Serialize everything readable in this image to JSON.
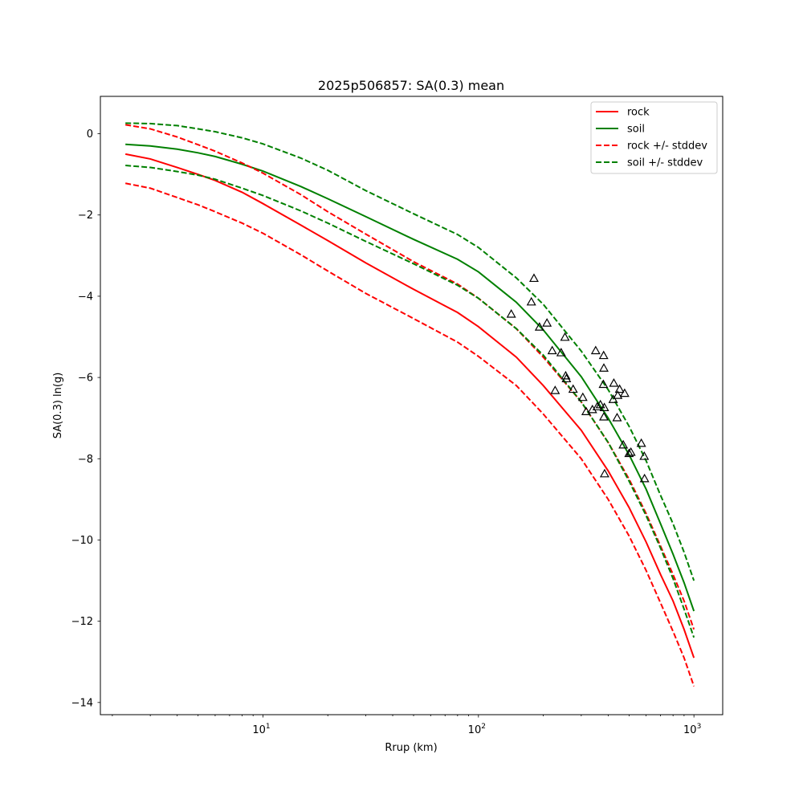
{
  "chart_data": {
    "type": "line",
    "title": "2025p506857: SA(0.3) mean",
    "xlabel": "Rrup (km)",
    "ylabel": "SA(0.3) ln(g)",
    "x_scale": "log",
    "xlim": [
      1.76,
      1360
    ],
    "ylim": [
      -14.3,
      0.92
    ],
    "grid": false,
    "legend_position": "top-right",
    "x_ticks": [
      {
        "value": 10,
        "base": "10",
        "exp": "1"
      },
      {
        "value": 100,
        "base": "10",
        "exp": "2"
      },
      {
        "value": 1000,
        "base": "10",
        "exp": "3"
      }
    ],
    "y_ticks": [
      {
        "value": 0,
        "label": "0"
      },
      {
        "value": -2,
        "label": "−2"
      },
      {
        "value": -4,
        "label": "−4"
      },
      {
        "value": -6,
        "label": "−6"
      },
      {
        "value": -8,
        "label": "−8"
      },
      {
        "value": -10,
        "label": "−10"
      },
      {
        "value": -12,
        "label": "−12"
      },
      {
        "value": -14,
        "label": "−14"
      }
    ],
    "x": [
      2.3,
      3,
      4,
      5,
      6,
      8,
      10,
      15,
      20,
      30,
      50,
      80,
      100,
      150,
      200,
      300,
      400,
      500,
      600,
      700,
      800,
      900,
      1000
    ],
    "series": [
      {
        "name": "rock",
        "color": "#ff0000",
        "dash": "solid",
        "values": [
          -0.5,
          -0.62,
          -0.83,
          -1.0,
          -1.15,
          -1.44,
          -1.72,
          -2.25,
          -2.63,
          -3.18,
          -3.83,
          -4.4,
          -4.75,
          -5.5,
          -6.2,
          -7.3,
          -8.3,
          -9.2,
          -10.05,
          -10.85,
          -11.5,
          -12.2,
          -12.9
        ]
      },
      {
        "name": "soil",
        "color": "#008000",
        "dash": "solid",
        "values": [
          -0.26,
          -0.3,
          -0.38,
          -0.47,
          -0.56,
          -0.75,
          -0.92,
          -1.3,
          -1.6,
          -2.04,
          -2.6,
          -3.09,
          -3.4,
          -4.15,
          -4.83,
          -5.98,
          -7.0,
          -7.9,
          -8.75,
          -9.6,
          -10.35,
          -11.05,
          -11.75
        ]
      },
      {
        "name": "rock +/- stddev",
        "color": "#ff0000",
        "dash": "dashed",
        "values": [
          0.22,
          0.12,
          -0.08,
          -0.27,
          -0.43,
          -0.72,
          -0.97,
          -1.5,
          -1.92,
          -2.47,
          -3.15,
          -3.7,
          -4.05,
          -4.8,
          -5.5,
          -6.6,
          -7.6,
          -8.5,
          -9.35,
          -10.15,
          -10.85,
          -11.5,
          -12.2
        ]
      },
      {
        "name": "",
        "color": "#ff0000",
        "dash": "dashed",
        "values": [
          -1.22,
          -1.34,
          -1.57,
          -1.75,
          -1.92,
          -2.2,
          -2.45,
          -2.98,
          -3.38,
          -3.93,
          -4.55,
          -5.13,
          -5.48,
          -6.2,
          -6.9,
          -8.0,
          -9.0,
          -9.9,
          -10.75,
          -11.55,
          -12.25,
          -12.9,
          -13.6
        ]
      },
      {
        "name": "soil +/- stddev",
        "color": "#008000",
        "dash": "dashed",
        "values": [
          0.26,
          0.25,
          0.2,
          0.12,
          0.05,
          -0.1,
          -0.25,
          -0.6,
          -0.9,
          -1.4,
          -1.97,
          -2.48,
          -2.8,
          -3.55,
          -4.2,
          -5.35,
          -6.3,
          -7.2,
          -8.05,
          -8.9,
          -9.6,
          -10.3,
          -11.0
        ]
      },
      {
        "name": "",
        "color": "#008000",
        "dash": "dashed",
        "values": [
          -0.78,
          -0.83,
          -0.93,
          -1.02,
          -1.12,
          -1.34,
          -1.52,
          -1.9,
          -2.2,
          -2.65,
          -3.2,
          -3.73,
          -4.05,
          -4.8,
          -5.45,
          -6.6,
          -7.6,
          -8.55,
          -9.4,
          -10.2,
          -10.95,
          -11.7,
          -12.4
        ]
      }
    ],
    "observations": {
      "marker": "triangle",
      "color": "#000000",
      "points": [
        [
          142,
          -4.45
        ],
        [
          176,
          -4.15
        ],
        [
          181,
          -3.57
        ],
        [
          192,
          -4.77
        ],
        [
          208,
          -4.67
        ],
        [
          220,
          -5.35
        ],
        [
          227,
          -6.33
        ],
        [
          242,
          -5.4
        ],
        [
          252,
          -5.02
        ],
        [
          254,
          -5.97
        ],
        [
          256,
          -6.04
        ],
        [
          275,
          -6.3
        ],
        [
          305,
          -6.5
        ],
        [
          316,
          -6.85
        ],
        [
          338,
          -6.8
        ],
        [
          350,
          -5.35
        ],
        [
          356,
          -6.73
        ],
        [
          368,
          -6.68
        ],
        [
          380,
          -6.18
        ],
        [
          381,
          -5.47
        ],
        [
          382,
          -5.78
        ],
        [
          382,
          -6.98
        ],
        [
          384,
          -6.75
        ],
        [
          385,
          -8.38
        ],
        [
          422,
          -6.55
        ],
        [
          425,
          -6.15
        ],
        [
          440,
          -7.0
        ],
        [
          443,
          -6.45
        ],
        [
          452,
          -6.3
        ],
        [
          470,
          -7.67
        ],
        [
          477,
          -6.4
        ],
        [
          500,
          -7.88
        ],
        [
          510,
          -7.85
        ],
        [
          570,
          -7.63
        ],
        [
          588,
          -7.95
        ],
        [
          590,
          -8.5
        ]
      ]
    }
  }
}
